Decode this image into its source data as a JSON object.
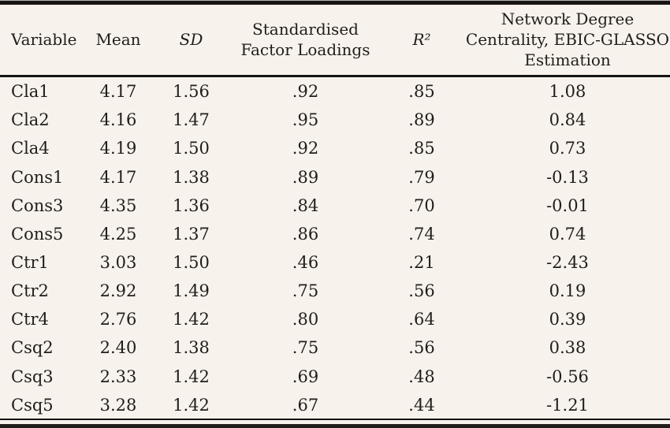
{
  "table": {
    "columns": [
      {
        "label": "Variable"
      },
      {
        "label": "Mean"
      },
      {
        "label": "SD"
      },
      {
        "label": "Standardised\nFactor Loadings"
      },
      {
        "label": "R²"
      },
      {
        "label": "Network Degree\nCentrality, EBIC-GLASSO\nEstimation"
      }
    ],
    "rows": [
      [
        "Cla1",
        "4.17",
        "1.56",
        ".92",
        ".85",
        "1.08"
      ],
      [
        "Cla2",
        "4.16",
        "1.47",
        ".95",
        ".89",
        "0.84"
      ],
      [
        "Cla4",
        "4.19",
        "1.50",
        ".92",
        ".85",
        "0.73"
      ],
      [
        "Cons1",
        "4.17",
        "1.38",
        ".89",
        ".79",
        "-0.13"
      ],
      [
        "Cons3",
        "4.35",
        "1.36",
        ".84",
        ".70",
        "-0.01"
      ],
      [
        "Cons5",
        "4.25",
        "1.37",
        ".86",
        ".74",
        "0.74"
      ],
      [
        "Ctr1",
        "3.03",
        "1.50",
        ".46",
        ".21",
        "-2.43"
      ],
      [
        "Ctr2",
        "2.92",
        "1.49",
        ".75",
        ".56",
        "0.19"
      ],
      [
        "Ctr4",
        "2.76",
        "1.42",
        ".80",
        ".64",
        "0.39"
      ],
      [
        "Csq2",
        "2.40",
        "1.38",
        ".75",
        ".56",
        "0.38"
      ],
      [
        "Csq3",
        "2.33",
        "1.42",
        ".69",
        ".48",
        "-0.56"
      ],
      [
        "Csq5",
        "3.28",
        "1.42",
        ".67",
        ".44",
        "-1.21"
      ]
    ]
  },
  "colors": {
    "background": "#f7f2ec",
    "text": "#201d1b",
    "rule": "#171514"
  }
}
